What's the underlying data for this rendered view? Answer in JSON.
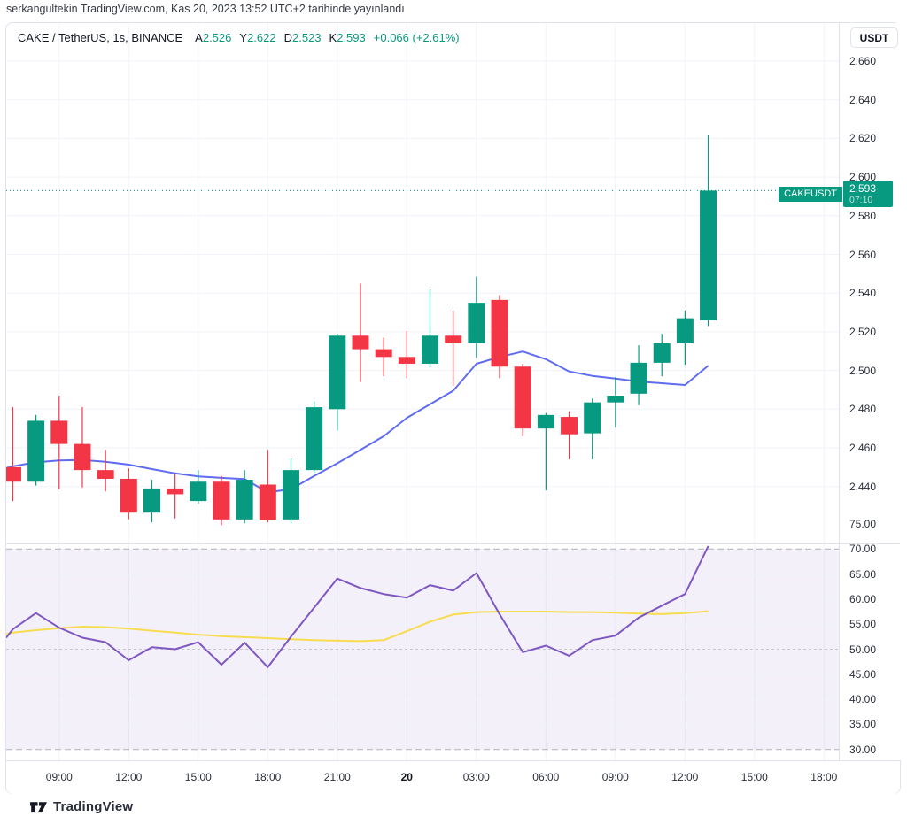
{
  "banner": {
    "text": "serkangultekin TradingView.com, Kas 20, 2023 13:52 UTC+2 tarihinde yayınlandı"
  },
  "legend": {
    "symbol": "CAKE / TetherUS, 1s, BINANCE",
    "ohlc": [
      {
        "label": "A",
        "value": "2.526"
      },
      {
        "label": "Y",
        "value": "2.622"
      },
      {
        "label": "D",
        "value": "2.523"
      },
      {
        "label": "K",
        "value": "2.593"
      }
    ],
    "change": "+0.066 (+2.61%)"
  },
  "currency_button": "USDT",
  "price_chip": {
    "name": "CAKEUSDT",
    "price": "2.593",
    "countdown": "07:10"
  },
  "footer": {
    "brand": "TradingView"
  },
  "colors": {
    "up": "#089981",
    "down": "#f23645",
    "ma_blue": "#5f6cf2",
    "rsi_purple": "#7e57c2",
    "rsi_ma_yellow": "#f7dc4f",
    "rsi_band_fill": "rgba(126,87,194,0.09)",
    "band_dash": "#787b86",
    "grid": "#f0f3fa",
    "border": "#e0e3eb",
    "text": "#2a2e39",
    "price_line": "#089981"
  },
  "chart_data": {
    "type": "candlestick",
    "title": "CAKE / TetherUS, 1s, BINANCE",
    "price_pane": {
      "y_ticks": [
        "2.660",
        "2.640",
        "2.620",
        "2.600",
        "2.580",
        "2.560",
        "2.540",
        "2.520",
        "2.500",
        "2.480",
        "2.460",
        "2.440"
      ],
      "y_range_approx": [
        2.421,
        2.68
      ],
      "price_line_value": 2.593,
      "candles": [
        {
          "t": "07:00",
          "o": 2.45,
          "h": 2.481,
          "l": 2.4325,
          "c": 2.4425
        },
        {
          "t": "08:00",
          "o": 2.4425,
          "h": 2.477,
          "l": 2.4405,
          "c": 2.474
        },
        {
          "t": "09:00",
          "o": 2.474,
          "h": 2.487,
          "l": 2.4385,
          "c": 2.462
        },
        {
          "t": "10:00",
          "o": 2.462,
          "h": 2.481,
          "l": 2.4395,
          "c": 2.4485
        },
        {
          "t": "11:00",
          "o": 2.4485,
          "h": 2.459,
          "l": 2.4375,
          "c": 2.444
        },
        {
          "t": "12:00",
          "o": 2.444,
          "h": 2.4495,
          "l": 2.423,
          "c": 2.4265
        },
        {
          "t": "13:00",
          "o": 2.4265,
          "h": 2.4435,
          "l": 2.4215,
          "c": 2.439
        },
        {
          "t": "14:00",
          "o": 2.439,
          "h": 2.4465,
          "l": 2.4235,
          "c": 2.436
        },
        {
          "t": "15:00",
          "o": 2.4325,
          "h": 2.4485,
          "l": 2.431,
          "c": 2.4425
        },
        {
          "t": "16:00",
          "o": 2.4425,
          "h": 2.4455,
          "l": 2.42,
          "c": 2.423
        },
        {
          "t": "17:00",
          "o": 2.423,
          "h": 2.4485,
          "l": 2.421,
          "c": 2.4435
        },
        {
          "t": "18:00",
          "o": 2.441,
          "h": 2.459,
          "l": 2.4215,
          "c": 2.4225
        },
        {
          "t": "19:00",
          "o": 2.423,
          "h": 2.4545,
          "l": 2.421,
          "c": 2.4485
        },
        {
          "t": "20:00",
          "o": 2.4485,
          "h": 2.484,
          "l": 2.447,
          "c": 2.481
        },
        {
          "t": "21:00",
          "o": 2.48,
          "h": 2.519,
          "l": 2.469,
          "c": 2.518
        },
        {
          "t": "22:00",
          "o": 2.518,
          "h": 2.545,
          "l": 2.494,
          "c": 2.511
        },
        {
          "t": "23:00",
          "o": 2.511,
          "h": 2.517,
          "l": 2.497,
          "c": 2.507
        },
        {
          "t": "00:00",
          "o": 2.507,
          "h": 2.5205,
          "l": 2.496,
          "c": 2.5035
        },
        {
          "t": "01:00",
          "o": 2.5035,
          "h": 2.542,
          "l": 2.5015,
          "c": 2.518
        },
        {
          "t": "02:00",
          "o": 2.518,
          "h": 2.531,
          "l": 2.492,
          "c": 2.514
        },
        {
          "t": "03:00",
          "o": 2.514,
          "h": 2.5485,
          "l": 2.5065,
          "c": 2.535
        },
        {
          "t": "04:00",
          "o": 2.5365,
          "h": 2.539,
          "l": 2.496,
          "c": 2.502
        },
        {
          "t": "05:00",
          "o": 2.502,
          "h": 2.5035,
          "l": 2.466,
          "c": 2.47
        },
        {
          "t": "06:00",
          "o": 2.47,
          "h": 2.478,
          "l": 2.438,
          "c": 2.477
        },
        {
          "t": "07:00",
          "o": 2.476,
          "h": 2.479,
          "l": 2.454,
          "c": 2.467
        },
        {
          "t": "08:00",
          "o": 2.4675,
          "h": 2.4855,
          "l": 2.454,
          "c": 2.4835
        },
        {
          "t": "09:00",
          "o": 2.4835,
          "h": 2.4965,
          "l": 2.4705,
          "c": 2.487
        },
        {
          "t": "10:00",
          "o": 2.488,
          "h": 2.513,
          "l": 2.482,
          "c": 2.504
        },
        {
          "t": "11:00",
          "o": 2.504,
          "h": 2.519,
          "l": 2.497,
          "c": 2.514
        },
        {
          "t": "12:00",
          "o": 2.514,
          "h": 2.531,
          "l": 2.503,
          "c": 2.527
        },
        {
          "t": "13:00",
          "o": 2.526,
          "h": 2.622,
          "l": 2.523,
          "c": 2.593
        }
      ],
      "ma_line": {
        "name": "MA",
        "lead": 2.4495,
        "values": [
          2.4505,
          2.4525,
          2.4535,
          2.4537,
          2.4528,
          2.4513,
          2.449,
          2.4468,
          2.4452,
          2.4445,
          2.4439,
          2.437,
          2.4386,
          2.4455,
          2.452,
          2.459,
          2.466,
          2.4755,
          2.4825,
          2.4895,
          2.5035,
          2.507,
          2.5098,
          2.5058,
          2.4995,
          2.4972,
          2.4958,
          2.4943,
          2.4934,
          2.4925,
          2.5025
        ]
      }
    },
    "rsi_pane": {
      "y_ticks": [
        "75.00",
        "70.00",
        "65.00",
        "60.00",
        "55.00",
        "50.00",
        "45.00",
        "40.00",
        "35.00",
        "30.00"
      ],
      "bands": {
        "upper": 70,
        "middle": 50,
        "lower": 30
      },
      "rsi_line": {
        "name": "RSI",
        "lead": 52.3,
        "values": [
          54.0,
          57.2,
          54.3,
          52.3,
          51.4,
          47.8,
          50.4,
          50.0,
          51.4,
          46.9,
          51.3,
          46.4,
          52.5,
          58.3,
          64.1,
          62.2,
          61.0,
          60.3,
          62.8,
          61.7,
          65.2,
          57.0,
          49.4,
          50.7,
          48.7,
          51.8,
          52.7,
          56.3,
          58.7,
          61.0,
          70.6
        ]
      },
      "rsi_ma_line": {
        "name": "RSI-based MA",
        "lead": 53.0,
        "values": [
          53.3,
          53.8,
          54.2,
          54.5,
          54.4,
          54.1,
          53.7,
          53.3,
          52.9,
          52.6,
          52.4,
          52.2,
          52.0,
          51.8,
          51.7,
          51.6,
          51.8,
          53.6,
          55.5,
          56.9,
          57.4,
          57.5,
          57.5,
          57.5,
          57.4,
          57.4,
          57.3,
          57.1,
          57.0,
          57.2,
          57.6
        ]
      }
    },
    "x_ticks": [
      {
        "label": "09:00",
        "bold": false
      },
      {
        "label": "12:00",
        "bold": false
      },
      {
        "label": "15:00",
        "bold": false
      },
      {
        "label": "18:00",
        "bold": false
      },
      {
        "label": "21:00",
        "bold": false
      },
      {
        "label": "20",
        "bold": true
      },
      {
        "label": "03:00",
        "bold": false
      },
      {
        "label": "06:00",
        "bold": false
      },
      {
        "label": "09:00",
        "bold": false
      },
      {
        "label": "12:00",
        "bold": false
      },
      {
        "label": "15:00",
        "bold": false
      },
      {
        "label": "18:00",
        "bold": false
      }
    ]
  }
}
